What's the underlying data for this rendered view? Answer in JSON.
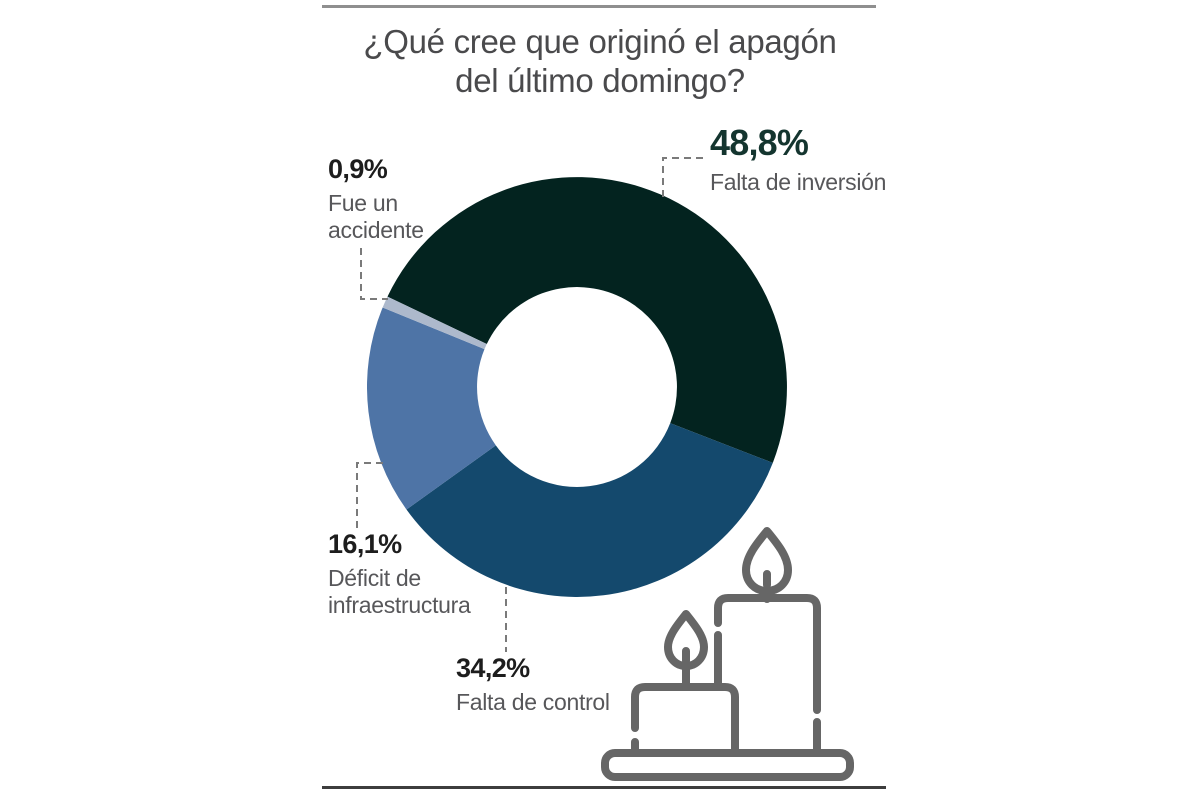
{
  "page": {
    "background": "#ffffff"
  },
  "rules": {
    "top_color": "#8f8f8f",
    "bottom_color": "#3d3d3d"
  },
  "title": {
    "line1": "¿Qué cree que originó el apagón",
    "line2": "del último domingo?",
    "color": "#4a4a4c"
  },
  "chart_data": {
    "type": "pie",
    "donut": true,
    "title": "¿Qué cree que originó el apagón del último domingo?",
    "start_angle_deg": 295.5,
    "inner_radius_ratio": 0.476,
    "legend_position": "callout-labels",
    "segments": [
      {
        "label": "Falta de inversión",
        "value": 48.8,
        "display": "48,8%",
        "color": "#03231f"
      },
      {
        "label": "Falta de control",
        "value": 34.2,
        "display": "34,2%",
        "color": "#14496d"
      },
      {
        "label": "Déficit de infraestructura",
        "value": 16.1,
        "display": "16,1%",
        "color": "#4e74a6"
      },
      {
        "label": "Fue un accidente",
        "value": 0.9,
        "display": "0,9%",
        "color": "#adb9cc"
      }
    ]
  },
  "callouts": {
    "inversion": {
      "pct": "48,8%",
      "text": "Falta de inversión",
      "pct_color": "#14352f"
    },
    "accidente": {
      "pct": "0,9%",
      "text": "Fue un\naccidente",
      "pct_color": "#1d1d1d"
    },
    "infraestructura": {
      "pct": "16,1%",
      "text": "Déficit de\ninfraestructura",
      "pct_color": "#1d1d1d"
    },
    "control": {
      "pct": "34,2%",
      "text": "Falta de control",
      "pct_color": "#1d1d1d"
    }
  },
  "illustration": {
    "name": "two-candles",
    "stroke_color": "#666666"
  },
  "label_text_color": "#57575a"
}
